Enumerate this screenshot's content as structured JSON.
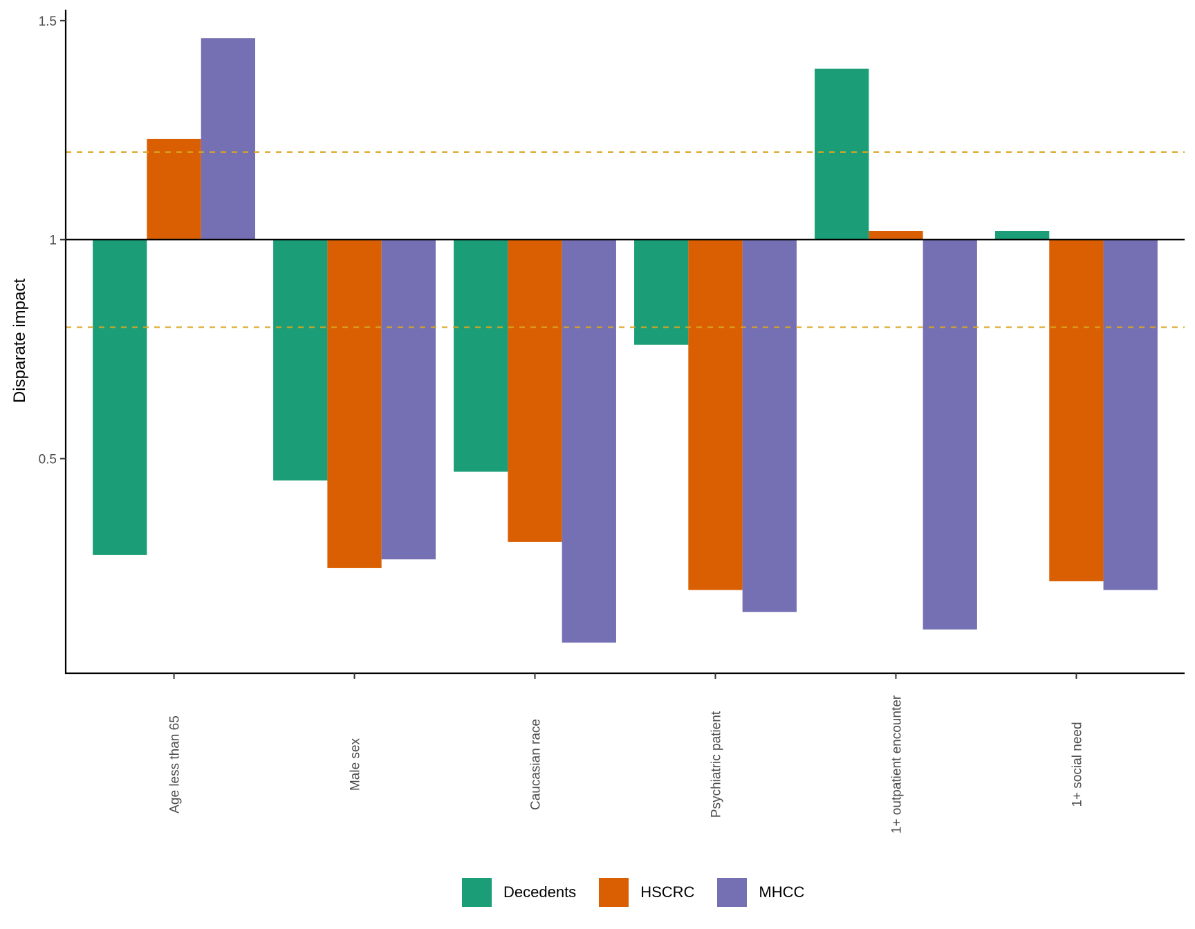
{
  "chart_data": {
    "type": "bar",
    "title": "",
    "xlabel": "",
    "ylabel": "Disparate impact",
    "baseline": 1,
    "ylim": [
      0.01,
      1.525
    ],
    "yticks": [
      0.5,
      1,
      1.5
    ],
    "ytick_labels": [
      "0.5",
      "1",
      "1.5"
    ],
    "reference_lines": [
      {
        "value": 0.8,
        "style": "dashed",
        "color": "#DAA520"
      },
      {
        "value": 1.2,
        "style": "dashed",
        "color": "#DAA520"
      }
    ],
    "categories": [
      "Age less than 65",
      "Male sex",
      "Caucasian race",
      "Psychiatric patient",
      "1+ outpatient encounter",
      "1+ social need"
    ],
    "series": [
      {
        "name": "Decedents",
        "color": "#1B9E77",
        "values": [
          0.28,
          0.45,
          0.47,
          0.76,
          1.39,
          1.02
        ]
      },
      {
        "name": "HSCRC",
        "color": "#D95F02",
        "values": [
          1.23,
          0.25,
          0.31,
          0.2,
          1.02,
          0.22
        ]
      },
      {
        "name": "MHCC",
        "color": "#7570B3",
        "values": [
          1.46,
          0.27,
          0.08,
          0.15,
          0.11,
          0.2
        ]
      }
    ],
    "grid": false,
    "legend_position": "bottom",
    "x_tick_label_rotation": "vertical"
  }
}
